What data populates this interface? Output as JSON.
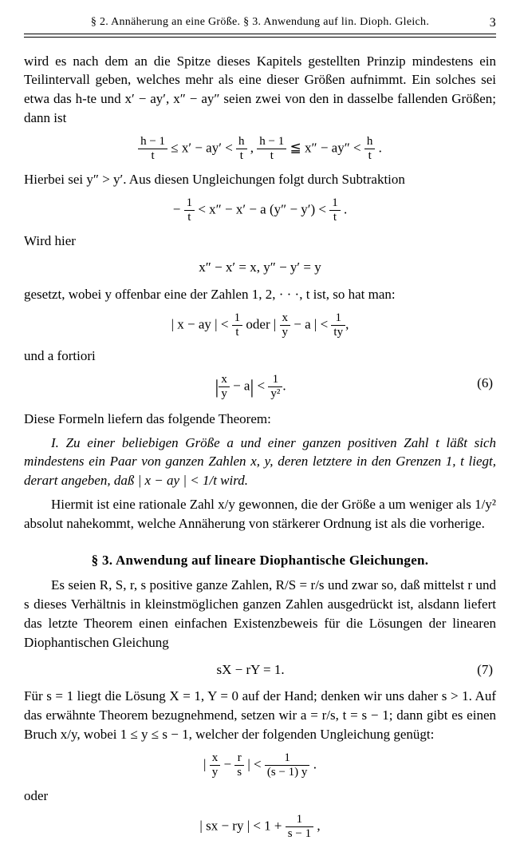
{
  "header": {
    "left": "§ 2. Annäherung an eine Größe.   § 3. Anwendung auf lin. Dioph. Gleich.",
    "pagenum": "3"
  },
  "para1": "wird es nach dem an die Spitze dieses Kapitels gestellten Prinzip mindestens ein Teilintervall geben, welches mehr als eine dieser Größen aufnimmt. Ein solches sei etwa das h-te und x′ − ay′, x″ − ay″ seien zwei von den in dasselbe fallenden Größen; dann ist",
  "eq1": {
    "f1n": "h − 1",
    "f1d": "t",
    "mid1": " ≤ x′ − ay′ < ",
    "f2n": "h",
    "f2d": "t",
    "sep": " ,   ",
    "f3n": "h − 1",
    "f3d": "t",
    "mid2": " ≦ x″ − ay″ < ",
    "f4n": "h",
    "f4d": "t",
    "end": " ."
  },
  "para2": "Hierbei sei y″ > y′. Aus diesen Ungleichungen folgt durch Subtraktion",
  "eq2": {
    "pre": "− ",
    "f1n": "1",
    "f1d": "t",
    "mid": " < x″ − x′ − a (y″ − y′) < ",
    "f2n": "1",
    "f2d": "t",
    "end": " ."
  },
  "para3": "Wird hier",
  "eq3": "x″ − x′ = x,    y″ − y′ = y",
  "para4": "gesetzt, wobei y offenbar eine der Zahlen 1, 2, · · ·, t ist, so hat man:",
  "eq4": {
    "lhs": "| x − ay | < ",
    "f1n": "1",
    "f1d": "t",
    "mid": "    oder    ",
    "abs_open": "| ",
    "f2n": "x",
    "f2d": "y",
    "mid2": " − a | < ",
    "f3n": "1",
    "f3d": "ty",
    "end": ","
  },
  "para5": "und a fortiori",
  "eq5": {
    "abs_open": "",
    "f1n": "x",
    "f1d": "y",
    "mid": " − a",
    "abs_close": " < ",
    "f2n": "1",
    "f2d": "y²",
    "end": ".",
    "num": "(6)"
  },
  "para6": "Diese Formeln liefern das folgende Theorem:",
  "theorem": "I. Zu einer beliebigen Größe a und einer ganzen positiven Zahl t läßt sich mindestens ein Paar von ganzen Zahlen x, y, deren letztere in den Grenzen 1, t liegt, derart angeben, daß | x − ay | < 1/t wird.",
  "para7": "Hiermit ist eine rationale Zahl x/y gewonnen, die der Größe a um weniger als 1/y² absolut nahekommt, welche Annäherung von stärkerer Ordnung ist als die vorherige.",
  "section3": "§ 3.  Anwendung auf lineare Diophantische Gleichungen.",
  "para8": "Es seien R, S, r, s positive ganze Zahlen, R/S = r/s und zwar so, daß mittelst r und s dieses Verhältnis in kleinstmöglichen ganzen Zahlen ausgedrückt ist, alsdann liefert das letzte Theorem einen einfachen Existenzbeweis für die Lösungen der linearen Diophantischen Gleichung",
  "eq6": {
    "text": "sX − rY = 1.",
    "num": "(7)"
  },
  "para9": "Für s = 1 liegt die Lösung X = 1, Y = 0 auf der Hand; denken wir uns daher s > 1. Auf das erwähnte Theorem bezugnehmend, setzen wir a = r/s, t = s − 1; dann gibt es einen Bruch x/y, wobei 1 ≤ y ≤ s − 1, welcher der folgenden Ungleichung genügt:",
  "eq7": {
    "abs_open": "| ",
    "f1n": "x",
    "f1d": "y",
    "mid": " − ",
    "f2n": "r",
    "f2d": "s",
    "mid2": " | < ",
    "f3n": "1",
    "f3d": "(s − 1) y",
    "end": " ."
  },
  "para10": "oder",
  "eq8": {
    "lhs": "| sx − ry | < 1 + ",
    "f1n": "1",
    "f1d": "s − 1",
    "end": " ,"
  }
}
